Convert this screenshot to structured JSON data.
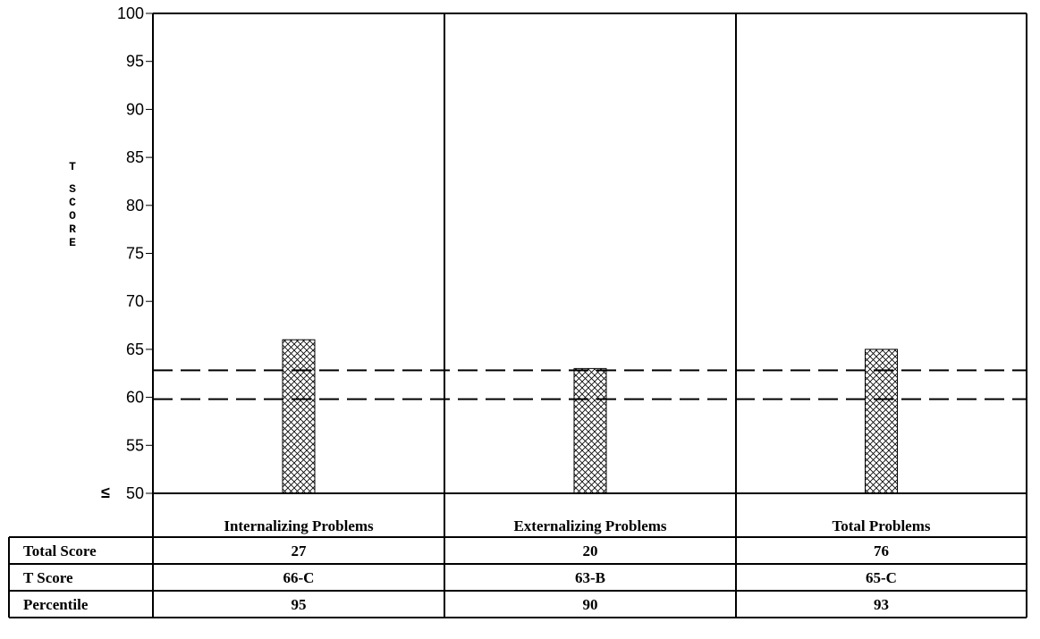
{
  "chart_data": {
    "type": "bar",
    "ylabel": "T SCORE",
    "ylim": [
      50,
      100
    ],
    "y_ticks": [
      "100",
      "95",
      "90",
      "85",
      "80",
      "75",
      "70",
      "65",
      "60",
      "55",
      "50"
    ],
    "y_min_prefix": "≤",
    "categories": [
      "Internalizing Problems",
      "Externalizing Problems",
      "Total Problems"
    ],
    "values": [
      66,
      63,
      65
    ],
    "reference_lines": [
      60,
      63
    ],
    "bar_pattern": "crosshatch",
    "grid": false
  },
  "table": {
    "rows": [
      {
        "label": "Total Score",
        "values": [
          "27",
          "20",
          "76"
        ]
      },
      {
        "label": "T Score",
        "values": [
          "66-C",
          "63-B",
          "65-C"
        ]
      },
      {
        "label": "Percentile",
        "values": [
          "95",
          "90",
          "93"
        ]
      }
    ]
  }
}
